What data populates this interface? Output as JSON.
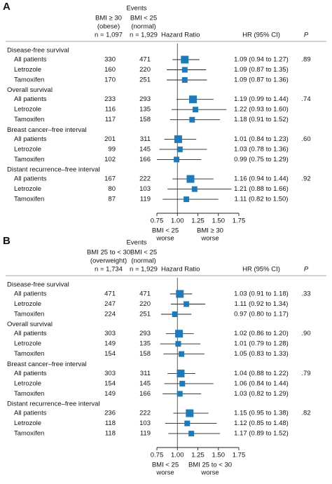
{
  "chart_data": [
    {
      "type": "forest",
      "panel": "A",
      "events_title": "Events",
      "column_headers": [
        [
          "BMI ≥ 30",
          "(obese)",
          "n = 1,097"
        ],
        [
          "BMI < 25",
          "(normal)",
          "n = 1,929"
        ]
      ],
      "plot_header": "Hazard Ratio",
      "ci_header": "HR (95% CI)",
      "p_header": "P",
      "xlim": [
        0.75,
        1.75
      ],
      "xticks": [
        0.75,
        {
          "value": 1,
          "label": "1.00"
        },
        1.25,
        {
          "value": 1.5,
          "label": "1.50"
        },
        1.75
      ],
      "reference_line": 1,
      "color": "#1b7bbf",
      "x_label_left": [
        "BMI < 25",
        "worse"
      ],
      "x_label_right": [
        "BMI ≥ 30",
        "worse"
      ],
      "groups": [
        {
          "name": "Disease-free survival",
          "p": {
            "value": 0.89,
            "label": ".89"
          },
          "rows": [
            {
              "label": "All patients",
              "events": [
                330,
                471
              ],
              "hr": 1.09,
              "lo": 0.94,
              "hi": 1.27,
              "value_label": "1.09 (0.94 to 1.27)"
            },
            {
              "label": "Letrozole",
              "events": [
                160,
                220
              ],
              "hr": 1.09,
              "lo": 0.87,
              "hi": 1.35,
              "value_label": "1.09 (0.87 to 1.35)"
            },
            {
              "label": "Tamoxifen",
              "events": [
                170,
                251
              ],
              "hr": 1.09,
              "lo": 0.87,
              "hi": 1.36,
              "value_label": "1.09 (0.87 to 1.36)"
            }
          ]
        },
        {
          "name": "Overall survival",
          "p": {
            "value": 0.74,
            "label": ".74"
          },
          "rows": [
            {
              "label": "All patients",
              "events": [
                233,
                293
              ],
              "hr": 1.19,
              "lo": 0.99,
              "hi": 1.44,
              "value_label": "1.19 (0.99 to 1.44)"
            },
            {
              "label": "Letrozole",
              "events": [
                116,
                135
              ],
              "hr": 1.22,
              "lo": 0.93,
              "hi": 1.6,
              "value_label": "1.22 (0.93 to 1.60)"
            },
            {
              "label": "Tamoxifen",
              "events": [
                117,
                158
              ],
              "hr": 1.18,
              "lo": 0.91,
              "hi": 1.52,
              "value_label": "1.18 (0.91 to 1.52)"
            }
          ]
        },
        {
          "name": "Breast cancer–free interval",
          "p": {
            "value": 0.6,
            "label": ".60"
          },
          "rows": [
            {
              "label": "All patients",
              "events": [
                201,
                311
              ],
              "hr": 1.01,
              "lo": 0.84,
              "hi": 1.23,
              "value_label": "1.01 (0.84 to 1.23)"
            },
            {
              "label": "Letrozole",
              "events": [
                99,
                145
              ],
              "hr": 1.03,
              "lo": 0.78,
              "hi": 1.36,
              "value_label": "1.03 (0.78 to 1.36)"
            },
            {
              "label": "Tamoxifen",
              "events": [
                102,
                166
              ],
              "hr": 0.99,
              "lo": 0.75,
              "hi": 1.29,
              "value_label": "0.99 (0.75 to 1.29)"
            }
          ]
        },
        {
          "name": "Distant recurrence–free interval",
          "p": {
            "value": 0.92,
            "label": ".92"
          },
          "rows": [
            {
              "label": "All patients",
              "events": [
                167,
                222
              ],
              "hr": 1.16,
              "lo": 0.94,
              "hi": 1.44,
              "value_label": "1.16 (0.94 to 1.44)"
            },
            {
              "label": "Letrozole",
              "events": [
                80,
                103
              ],
              "hr": 1.21,
              "lo": 0.88,
              "hi": 1.66,
              "value_label": "1.21 (0.88 to 1.66)"
            },
            {
              "label": "Tamoxifen",
              "events": [
                87,
                119
              ],
              "hr": 1.11,
              "lo": 0.82,
              "hi": 1.5,
              "value_label": "1.11 (0.82 to 1.50)"
            }
          ]
        }
      ]
    },
    {
      "type": "forest",
      "panel": "B",
      "events_title": "Events",
      "column_headers": [
        [
          "BMI 25 to < 30",
          "(overweight)",
          "n = 1,734"
        ],
        [
          "BMI < 25",
          "(normal)",
          "n = 1,929"
        ]
      ],
      "plot_header": "Hazard Ratio",
      "ci_header": "HR (95% CI)",
      "p_header": "P",
      "xlim": [
        0.75,
        1.75
      ],
      "xticks": [
        0.75,
        {
          "value": 1,
          "label": "1.00"
        },
        1.25,
        {
          "value": 1.5,
          "label": "1.50"
        },
        1.75
      ],
      "reference_line": 1,
      "color": "#1b7bbf",
      "x_label_left": [
        "BMI < 25",
        "worse"
      ],
      "x_label_right": [
        "BMI 25 to < 30",
        "worse"
      ],
      "groups": [
        {
          "name": "Disease-free survival",
          "p": {
            "value": 0.33,
            "label": ".33"
          },
          "rows": [
            {
              "label": "All patients",
              "events": [
                471,
                471
              ],
              "hr": 1.03,
              "lo": 0.91,
              "hi": 1.18,
              "value_label": "1.03 (0.91 to 1.18)"
            },
            {
              "label": "Letrozole",
              "events": [
                247,
                220
              ],
              "hr": 1.11,
              "lo": 0.92,
              "hi": 1.34,
              "value_label": "1.11 (0.92 to 1.34)"
            },
            {
              "label": "Tamoxifen",
              "events": [
                224,
                251
              ],
              "hr": 0.97,
              "lo": 0.8,
              "hi": 1.17,
              "value_label": "0.97 (0.80 to 1.17)"
            }
          ]
        },
        {
          "name": "Overall survival",
          "p": {
            "value": 0.9,
            "label": ".90"
          },
          "rows": [
            {
              "label": "All patients",
              "events": [
                303,
                293
              ],
              "hr": 1.02,
              "lo": 0.86,
              "hi": 1.2,
              "value_label": "1.02 (0.86 to 1.20)"
            },
            {
              "label": "Letrozole",
              "events": [
                149,
                135
              ],
              "hr": 1.01,
              "lo": 0.79,
              "hi": 1.28,
              "value_label": "1.01 (0.79 to 1.28)"
            },
            {
              "label": "Tamoxifen",
              "events": [
                154,
                158
              ],
              "hr": 1.05,
              "lo": 0.83,
              "hi": 1.33,
              "value_label": "1.05 (0.83 to 1.33)"
            }
          ]
        },
        {
          "name": "Breast cancer–free interval",
          "p": {
            "value": 0.79,
            "label": ".79"
          },
          "rows": [
            {
              "label": "All patients",
              "events": [
                303,
                311
              ],
              "hr": 1.04,
              "lo": 0.88,
              "hi": 1.22,
              "value_label": "1.04 (0.88 to 1.22)"
            },
            {
              "label": "Letrozole",
              "events": [
                154,
                145
              ],
              "hr": 1.06,
              "lo": 0.84,
              "hi": 1.44,
              "value_label": "1.06 (0.84 to 1.44)"
            },
            {
              "label": "Tamoxifen",
              "events": [
                149,
                166
              ],
              "hr": 1.03,
              "lo": 0.82,
              "hi": 1.29,
              "value_label": "1.03 (0.82 to 1.29)"
            }
          ]
        },
        {
          "name": "Distant recurrence–free interval",
          "p": {
            "value": 0.82,
            "label": ".82"
          },
          "rows": [
            {
              "label": "All patients",
              "events": [
                236,
                222
              ],
              "hr": 1.15,
              "lo": 0.95,
              "hi": 1.38,
              "value_label": "1.15 (0.95 to 1.38)"
            },
            {
              "label": "Letrozole",
              "events": [
                118,
                103
              ],
              "hr": 1.12,
              "lo": 0.85,
              "hi": 1.48,
              "value_label": "1.12 (0.85 to 1.48)"
            },
            {
              "label": "Tamoxifen",
              "events": [
                118,
                119
              ],
              "hr": 1.17,
              "lo": 0.89,
              "hi": 1.52,
              "value_label": "1.17 (0.89 to 1.52)"
            }
          ]
        }
      ]
    }
  ]
}
